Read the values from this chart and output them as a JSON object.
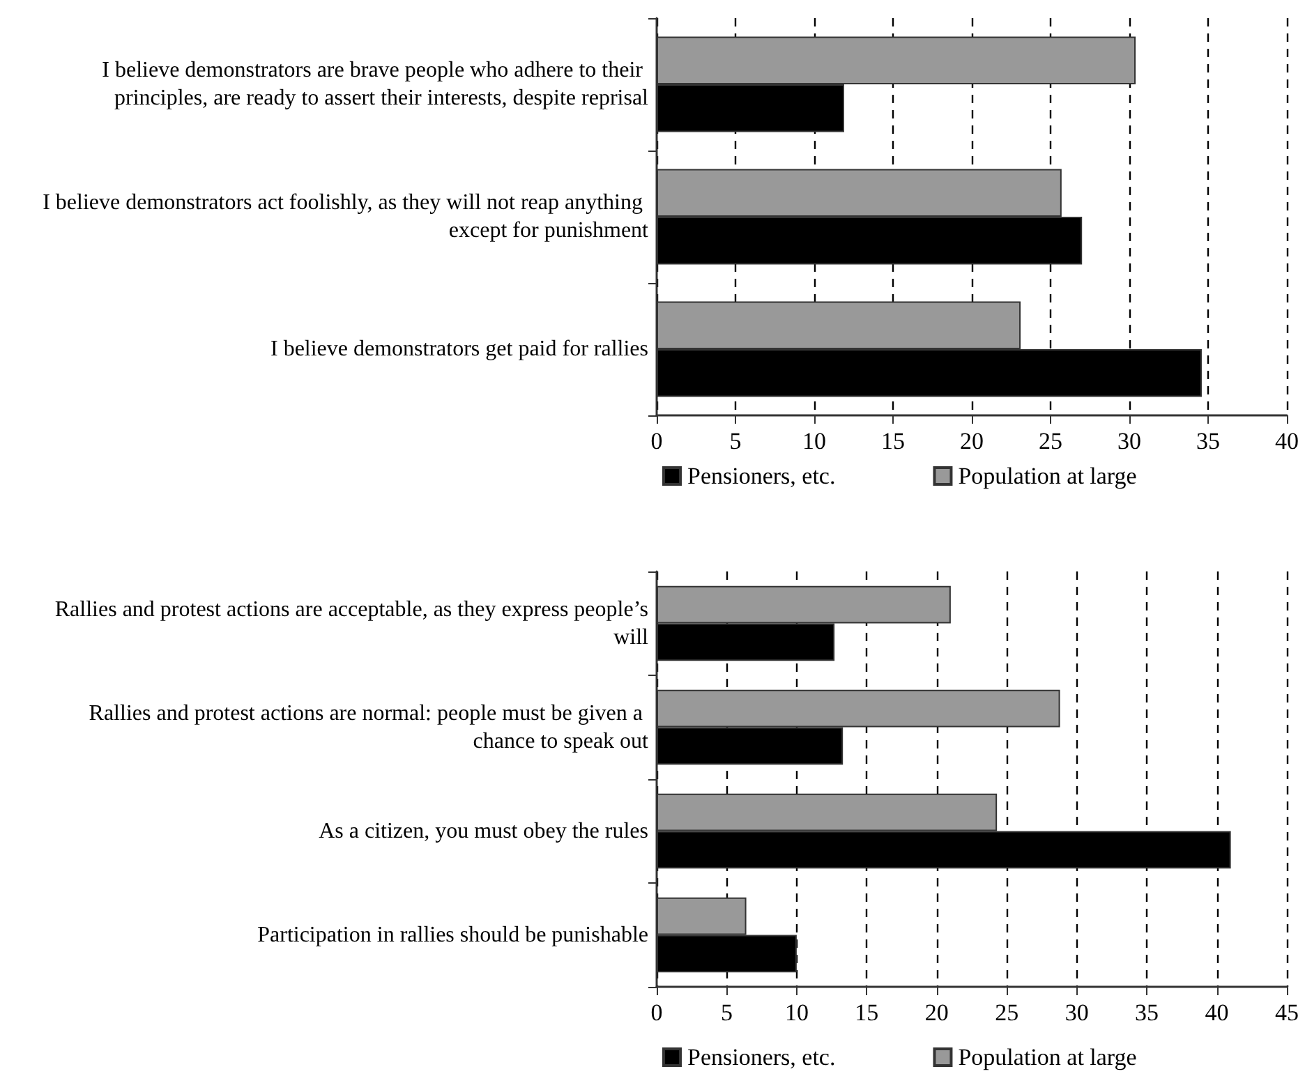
{
  "chart_data": [
    {
      "type": "bar",
      "orientation": "horizontal",
      "categories": [
        "I believe demonstrators are brave people who adhere to their principles, are ready to assert their interests, despite reprisal",
        "I believe demonstrators act foolishly, as they will not reap anything except for punishment",
        "I believe demonstrators get paid for rallies"
      ],
      "series": [
        {
          "name": "Population at large",
          "color": "#999999",
          "values": [
            30.4,
            25.7,
            23.1
          ]
        },
        {
          "name": "Pensioners, etc.",
          "color": "#000000",
          "values": [
            11.9,
            27.0,
            34.6
          ]
        }
      ],
      "xlim": [
        0,
        40
      ],
      "xticks": [
        0,
        5,
        10,
        15,
        20,
        25,
        30,
        35,
        40
      ],
      "grid": "x",
      "legend": "bottom"
    },
    {
      "type": "bar",
      "orientation": "horizontal",
      "categories": [
        "Rallies and protest actions are acceptable, as they express people’s will",
        "Rallies and protest actions are normal: people must be given a chance to speak out",
        "As a citizen, you must obey the rules",
        "Participation in rallies should be punishable"
      ],
      "series": [
        {
          "name": "Population at large",
          "color": "#999999",
          "values": [
            21.0,
            28.8,
            24.3,
            6.4
          ]
        },
        {
          "name": "Pensioners, etc.",
          "color": "#000000",
          "values": [
            12.7,
            13.3,
            41.0,
            10.0
          ]
        }
      ],
      "xlim": [
        0,
        45
      ],
      "xticks": [
        0,
        5,
        10,
        15,
        20,
        25,
        30,
        35,
        40,
        45
      ],
      "grid": "x",
      "legend": "bottom"
    }
  ]
}
